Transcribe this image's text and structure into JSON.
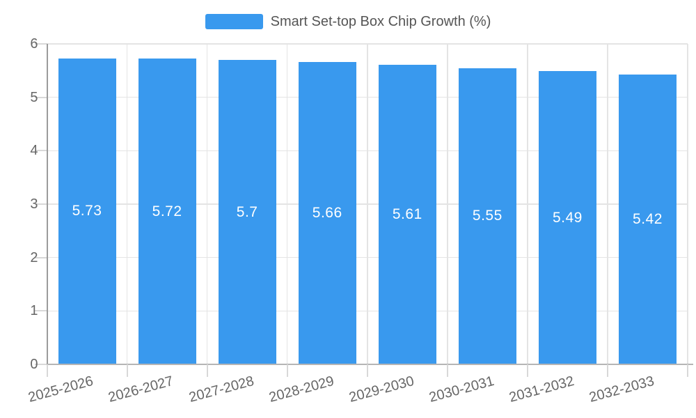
{
  "chart_data": {
    "type": "bar",
    "title": "Smart Set-top Box Chip Growth (%)",
    "legend_label": "Smart Set-top Box Chip Growth (%)",
    "legend_position": "top-center",
    "categories": [
      "2025-2026",
      "2026-2027",
      "2027-2028",
      "2028-2029",
      "2029-2030",
      "2030-2031",
      "2031-2032",
      "2032-2033"
    ],
    "values": [
      5.73,
      5.72,
      5.7,
      5.66,
      5.61,
      5.55,
      5.49,
      5.42
    ],
    "value_labels": [
      "5.73",
      "5.72",
      "5.7",
      "5.66",
      "5.61",
      "5.55",
      "5.49",
      "5.42"
    ],
    "xlabel": "",
    "ylabel": "",
    "ylim": [
      0,
      6
    ],
    "yticks": [
      0,
      1,
      2,
      3,
      4,
      5,
      6
    ],
    "ytick_labels": [
      "0",
      "1",
      "2",
      "3",
      "4",
      "5",
      "6"
    ],
    "grid": true,
    "colors": {
      "bar": "#3999EE",
      "bar_label": "#FFFFFF",
      "axis_text": "#666666",
      "legend_text": "#555555",
      "gridline": "#E4E4E4",
      "tick": "#D8D8D8",
      "y_axis_line": "#9B9B9B",
      "x_axis_line": "#B5B5B5",
      "background": "#FFFFFF"
    }
  }
}
